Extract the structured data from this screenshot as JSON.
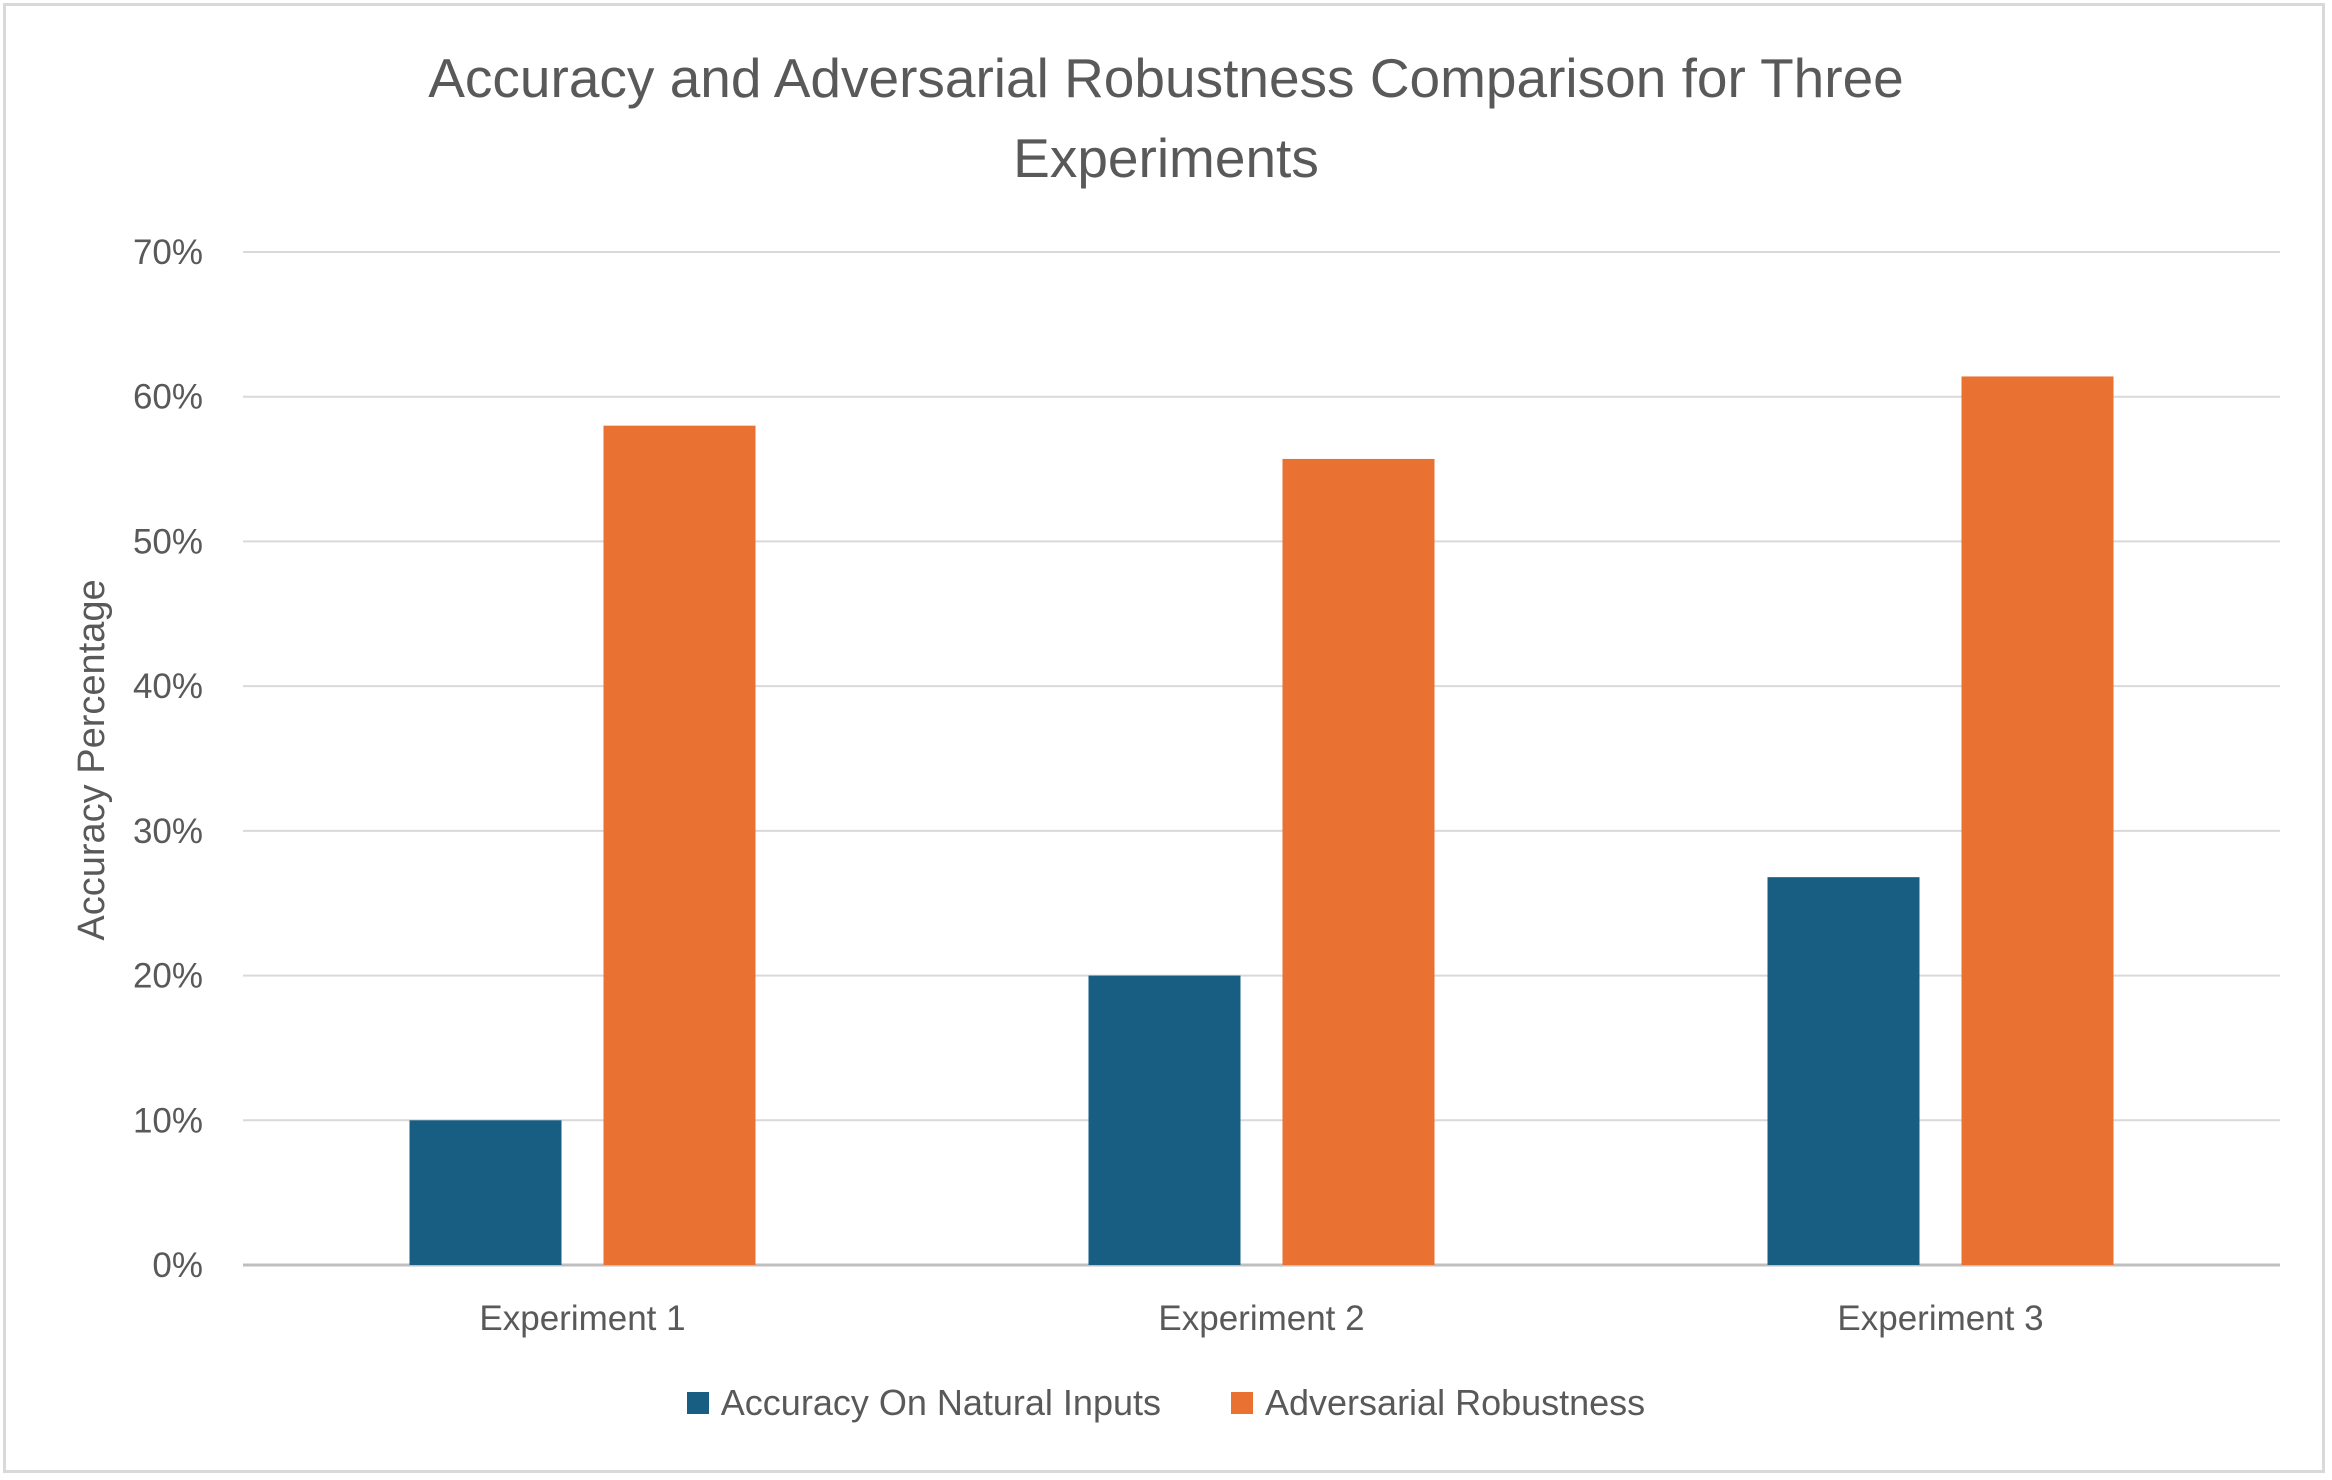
{
  "chart_data": {
    "type": "bar",
    "title": "Accuracy and Adversarial Robustness Comparison for Three Experiments",
    "xlabel": "",
    "ylabel": "Accuracy Percentage",
    "categories": [
      "Experiment 1",
      "Experiment 2",
      "Experiment 3"
    ],
    "series": [
      {
        "name": "Accuracy On Natural Inputs",
        "color": "#175e82",
        "values": [
          10,
          20,
          26.8
        ]
      },
      {
        "name": "Adversarial Robustness",
        "color": "#e97132",
        "values": [
          58,
          55.7,
          61.4
        ]
      }
    ],
    "ylim": [
      0,
      70
    ],
    "y_ticks": [
      0,
      10,
      20,
      30,
      40,
      50,
      60,
      70
    ],
    "y_tick_labels": [
      "0%",
      "10%",
      "20%",
      "30%",
      "40%",
      "50%",
      "60%",
      "70%"
    ],
    "grid": true,
    "legend_position": "bottom"
  }
}
